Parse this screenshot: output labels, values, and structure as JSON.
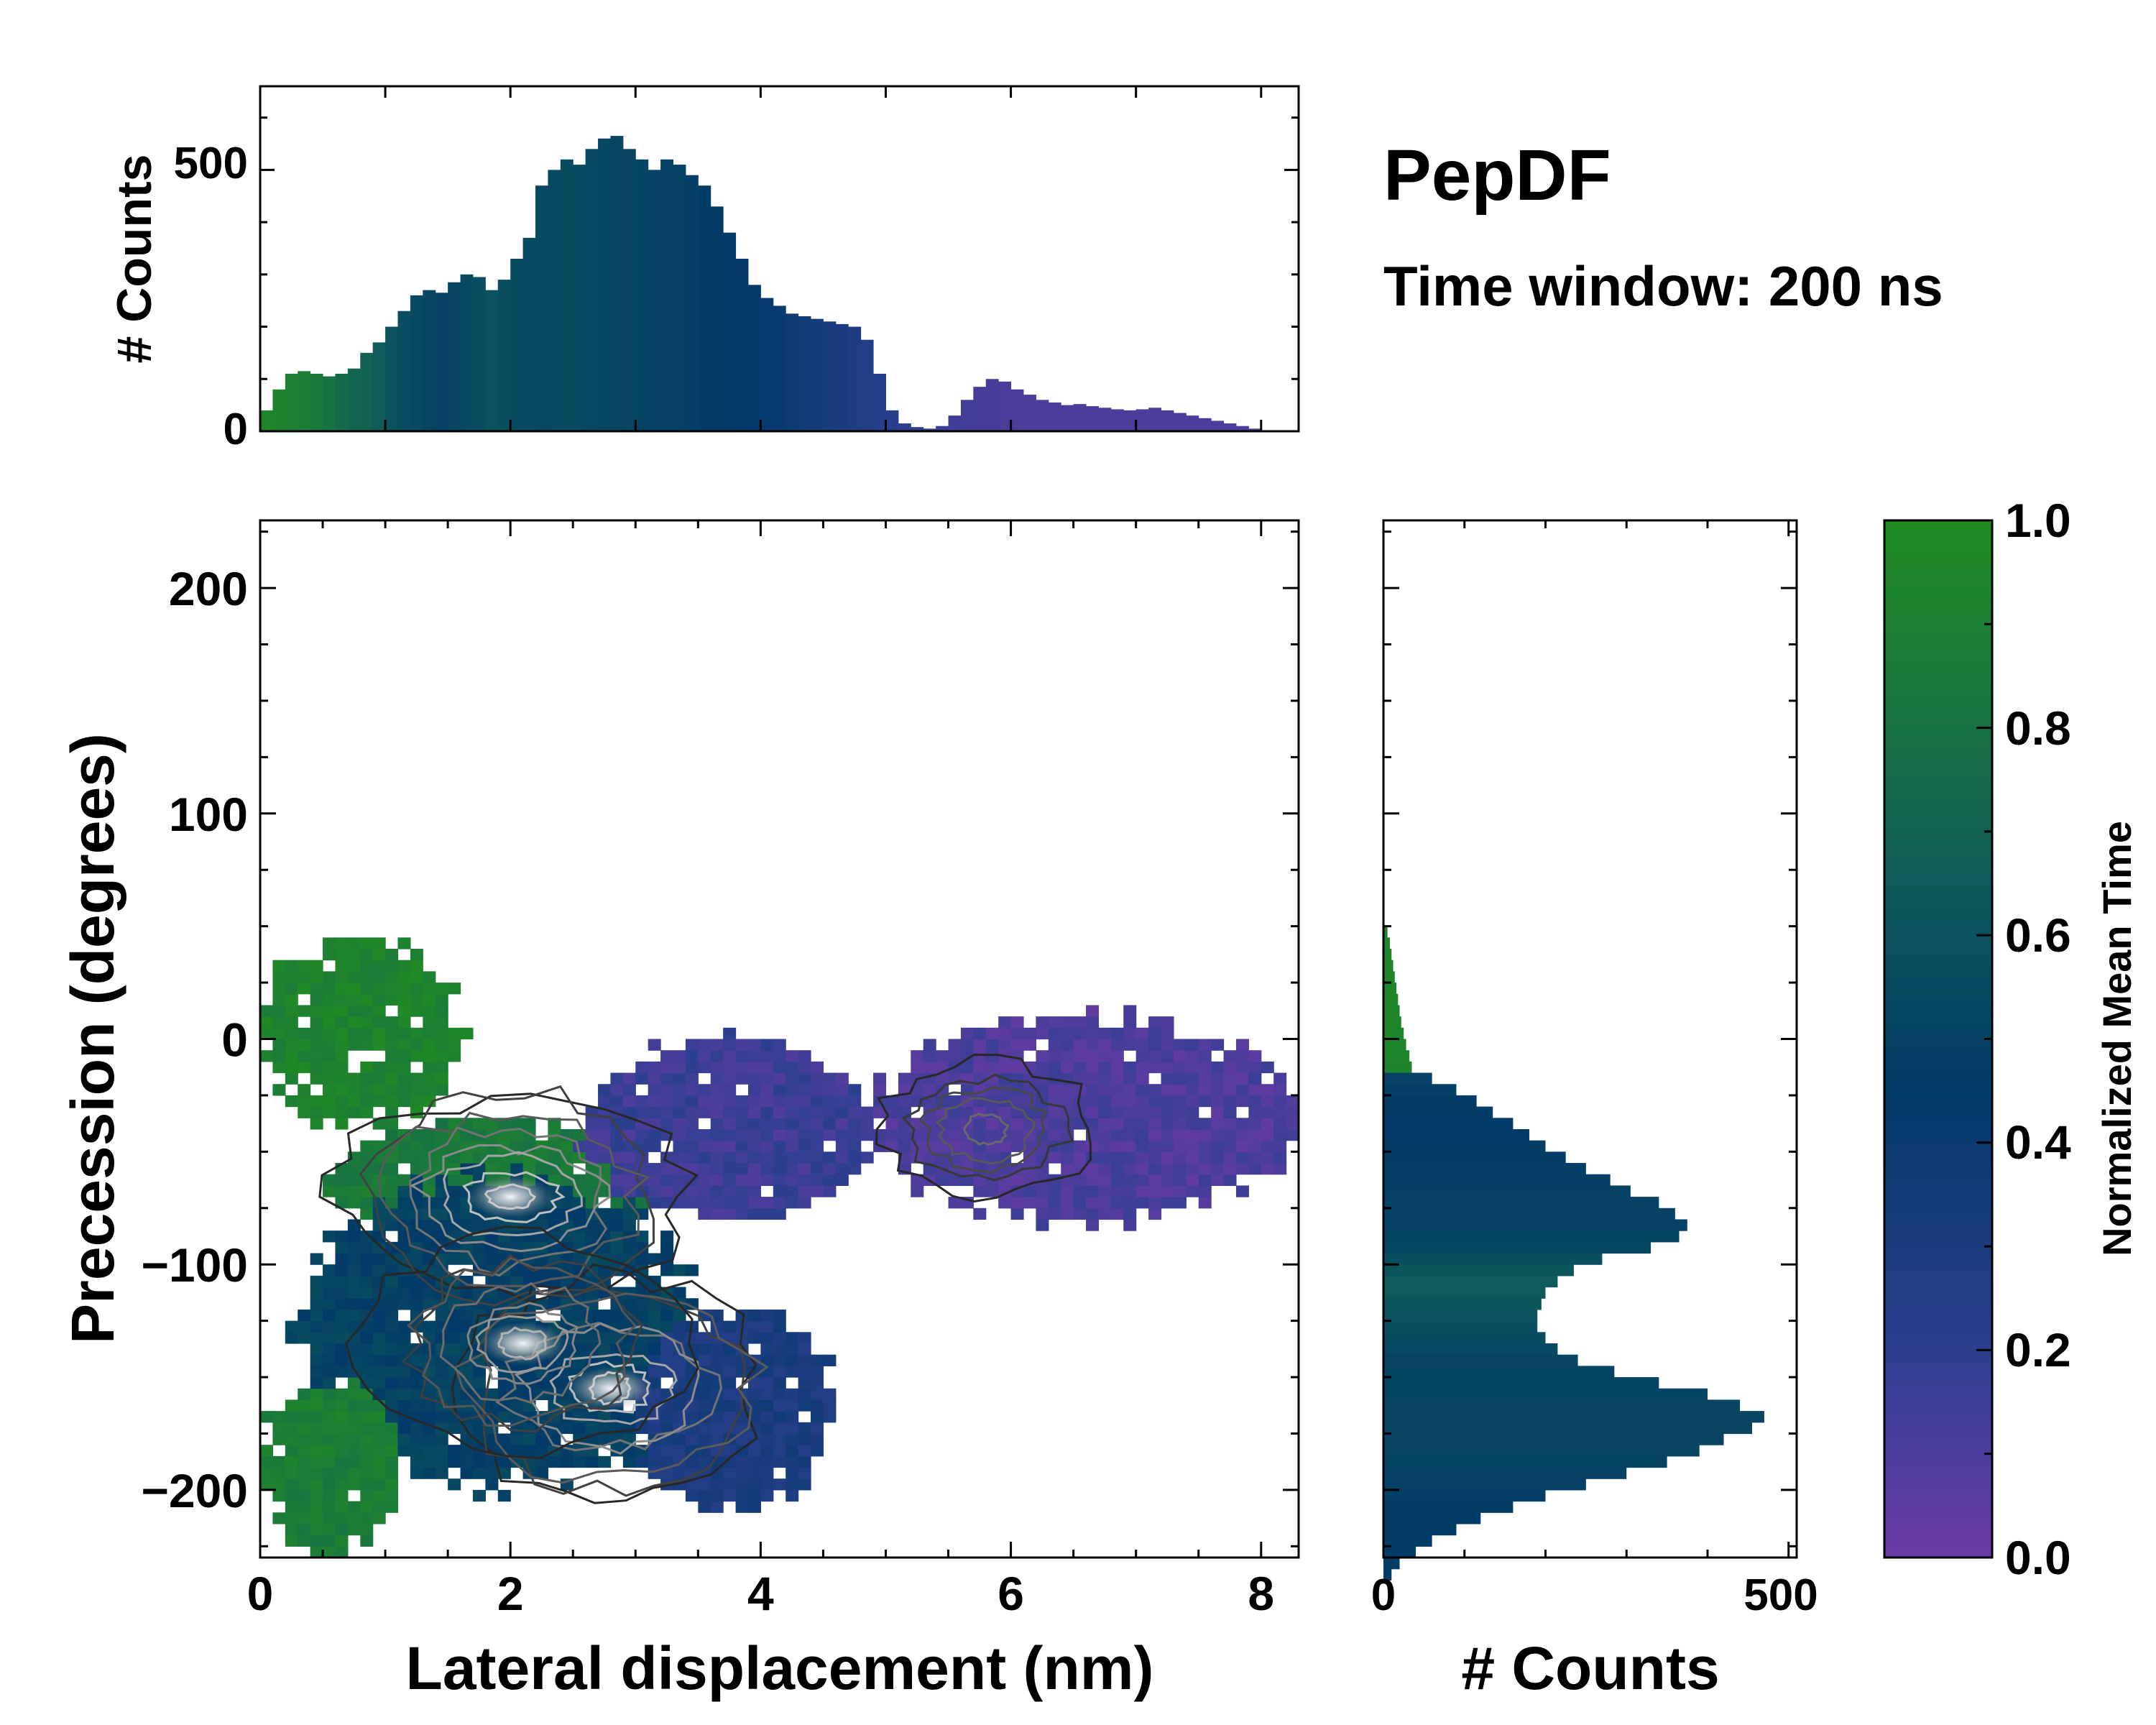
{
  "chart_data": [
    {
      "id": "top_hist",
      "type": "bar",
      "description_axis": "x",
      "ylabel": "# Counts",
      "xlim": [
        0,
        8.3
      ],
      "ylim": [
        0,
        660
      ],
      "yticks": [
        0,
        500
      ],
      "colorbar_link": "Normalized Mean Time",
      "bins": {
        "x_start": 0.05,
        "x_step": 0.1,
        "values": [
          40,
          80,
          110,
          115,
          110,
          105,
          110,
          120,
          150,
          170,
          200,
          230,
          260,
          270,
          265,
          285,
          300,
          295,
          270,
          290,
          330,
          370,
          470,
          500,
          520,
          510,
          540,
          560,
          565,
          540,
          520,
          500,
          520,
          510,
          490,
          470,
          430,
          380,
          330,
          280,
          255,
          240,
          225,
          220,
          215,
          210,
          205,
          200,
          175,
          110,
          40,
          15,
          8,
          5,
          10,
          30,
          60,
          85,
          100,
          95,
          80,
          70,
          60,
          55,
          50,
          52,
          48,
          45,
          42,
          40,
          42,
          45,
          40,
          35,
          30,
          25,
          20,
          15,
          10,
          5,
          2,
          1,
          0
        ],
        "norm_time": [
          0.95,
          0.92,
          0.9,
          0.88,
          0.85,
          0.8,
          0.75,
          0.72,
          0.7,
          0.65,
          0.6,
          0.57,
          0.55,
          0.52,
          0.5,
          0.52,
          0.55,
          0.57,
          0.6,
          0.58,
          0.56,
          0.55,
          0.54,
          0.55,
          0.56,
          0.55,
          0.54,
          0.53,
          0.52,
          0.52,
          0.51,
          0.5,
          0.5,
          0.49,
          0.48,
          0.47,
          0.46,
          0.45,
          0.44,
          0.43,
          0.42,
          0.4,
          0.38,
          0.36,
          0.34,
          0.32,
          0.3,
          0.28,
          0.26,
          0.24,
          0.22,
          0.2,
          0.18,
          0.16,
          0.15,
          0.14,
          0.13,
          0.12,
          0.12,
          0.11,
          0.11,
          0.1,
          0.1,
          0.1,
          0.1,
          0.1,
          0.1,
          0.1,
          0.1,
          0.1,
          0.1,
          0.1,
          0.1,
          0.1,
          0.1,
          0.1,
          0.1,
          0.1,
          0.1,
          0.1,
          0.1,
          0.1,
          0.1
        ]
      }
    },
    {
      "id": "main_2d",
      "type": "heatmap",
      "xlabel": "Lateral displacement (nm)",
      "ylabel": "Precession (degrees)",
      "xlim": [
        0,
        8.3
      ],
      "ylim": [
        -230,
        230
      ],
      "xticks": [
        0,
        2,
        4,
        6,
        8
      ],
      "yticks": [
        -200,
        -100,
        0,
        100,
        200
      ],
      "xticklabels": [
        "0",
        "2",
        "4",
        "6",
        "8"
      ],
      "yticklabels": [
        "−200",
        "−100",
        "0",
        "100",
        "200"
      ],
      "cell": {
        "dx": 0.1,
        "dy": 5
      },
      "regions": [
        {
          "name": "upper-left green",
          "x": [
            0.0,
            1.6
          ],
          "y": [
            -40,
            45
          ],
          "norm_time": 0.92
        },
        {
          "name": "green band",
          "x": [
            0.5,
            3.2
          ],
          "y": [
            -90,
            -35
          ],
          "norm_time": 0.85
        },
        {
          "name": "central dense",
          "x": [
            0.3,
            3.5
          ],
          "y": [
            -200,
            -60
          ],
          "norm_time": 0.5
        },
        {
          "name": "lower-left green",
          "x": [
            0.0,
            1.1
          ],
          "y": [
            -230,
            -150
          ],
          "norm_time": 0.88
        },
        {
          "name": "purple mid",
          "x": [
            2.6,
            4.9
          ],
          "y": [
            -80,
            0
          ],
          "norm_time": 0.15
        },
        {
          "name": "purple right",
          "x": [
            4.9,
            8.3
          ],
          "y": [
            -80,
            10
          ],
          "norm_time": 0.1
        },
        {
          "name": "blue right fringe",
          "x": [
            3.0,
            4.6
          ],
          "y": [
            -210,
            -120
          ],
          "norm_time": 0.3
        }
      ],
      "density_peaks": [
        {
          "x": 2.0,
          "y": -70,
          "intensity": 1.0
        },
        {
          "x": 2.8,
          "y": -155,
          "intensity": 1.0
        },
        {
          "x": 2.1,
          "y": -135,
          "intensity": 0.8
        },
        {
          "x": 5.8,
          "y": -40,
          "intensity": 0.4
        }
      ]
    },
    {
      "id": "right_hist",
      "type": "bar",
      "orientation": "horizontal",
      "xlabel": "# Counts",
      "xlim": [
        0,
        510
      ],
      "xticks": [
        0,
        500
      ],
      "ylim": [
        -230,
        230
      ],
      "bins": {
        "y_start": 47.5,
        "y_step": -5,
        "values": [
          5,
          8,
          10,
          12,
          14,
          16,
          18,
          20,
          22,
          25,
          28,
          32,
          35,
          60,
          90,
          115,
          135,
          160,
          180,
          200,
          225,
          250,
          280,
          305,
          340,
          360,
          375,
          365,
          330,
          270,
          235,
          215,
          200,
          195,
          190,
          190,
          200,
          215,
          240,
          285,
          340,
          400,
          440,
          470,
          455,
          420,
          390,
          350,
          300,
          250,
          200,
          160,
          120,
          90,
          60,
          40,
          20,
          10
        ],
        "norm_time": [
          0.95,
          0.95,
          0.95,
          0.95,
          0.95,
          0.95,
          0.95,
          0.95,
          0.95,
          0.95,
          0.95,
          0.95,
          0.92,
          0.5,
          0.48,
          0.47,
          0.46,
          0.45,
          0.45,
          0.46,
          0.47,
          0.48,
          0.48,
          0.49,
          0.5,
          0.5,
          0.5,
          0.51,
          0.53,
          0.58,
          0.62,
          0.65,
          0.65,
          0.62,
          0.6,
          0.58,
          0.56,
          0.54,
          0.52,
          0.51,
          0.51,
          0.51,
          0.52,
          0.52,
          0.52,
          0.52,
          0.52,
          0.51,
          0.5,
          0.49,
          0.48,
          0.47,
          0.46,
          0.46,
          0.46,
          0.46,
          0.46,
          0.46
        ]
      }
    }
  ],
  "annotations": {
    "title": "PepDF",
    "subtitle": "Time window: 200 ns"
  },
  "colorbar": {
    "label": "Normalized Mean Time",
    "min": 0.0,
    "max": 1.0,
    "ticks": [
      "0.0",
      "0.2",
      "0.4",
      "0.6",
      "0.8",
      "1.0"
    ],
    "colors": [
      "#6c3aa6",
      "#2c3f8f",
      "#023a68",
      "#0f5a5a",
      "#1a7a3a",
      "#228b22"
    ]
  },
  "top_hist_labels": {
    "ylabel": "# Counts",
    "yticklabels": [
      "0",
      "500"
    ]
  },
  "right_hist_labels": {
    "xlabel": "# Counts",
    "xticklabels": [
      "0",
      "500"
    ]
  }
}
